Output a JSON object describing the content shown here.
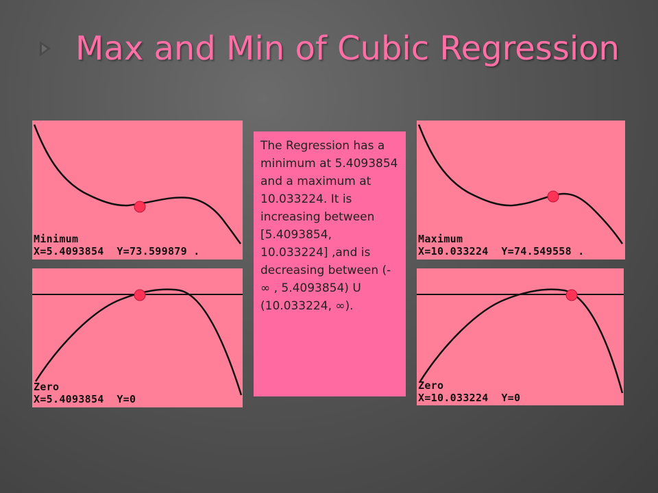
{
  "slide": {
    "title": "Max and Min of Cubic Regression",
    "description": "The Regression has a minimum at 5.4093854 and a maximum at 10.033224. It is increasing between [5.4093854, 10.033224] ,and is decreasing between (- ∞ , 5.4093854) U (10.033224, ∞)."
  },
  "screens": [
    {
      "label": "Minimum",
      "x_readout": "X=5.4093854",
      "y_readout": "Y=73.599879",
      "suffix": "."
    },
    {
      "label": "Maximum",
      "x_readout": "X=10.033224",
      "y_readout": "Y=74.549558",
      "suffix": "."
    },
    {
      "label": "Zero",
      "x_readout": "X=5.4093854",
      "y_readout": "Y=0",
      "suffix": ""
    },
    {
      "label": "Zero",
      "x_readout": "X=10.033224",
      "y_readout": "Y=0",
      "suffix": ""
    }
  ],
  "colors": {
    "title": "#ff6fa6",
    "screen": "#fe7f97",
    "textbox": "#ff6ba0",
    "marker": "#ff3355"
  }
}
